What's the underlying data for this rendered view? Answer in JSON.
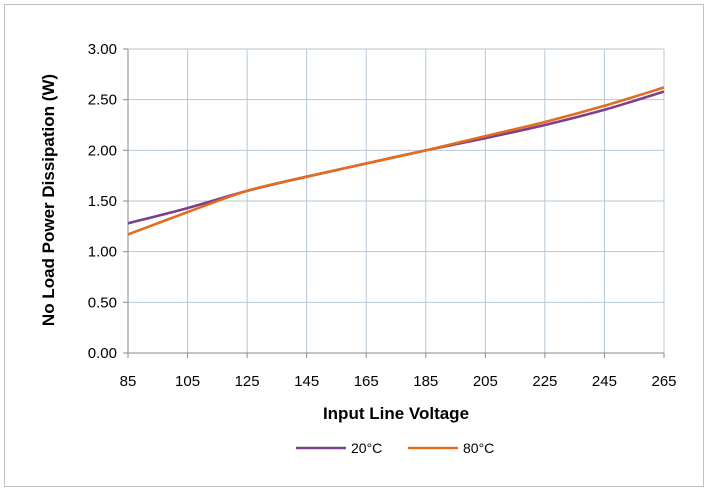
{
  "chart_data": {
    "type": "line",
    "xlabel": "Input Line Voltage",
    "ylabel": "No Load Power Dissipation (W)",
    "x": [
      85,
      105,
      125,
      145,
      165,
      185,
      205,
      225,
      245,
      265
    ],
    "x_ticks": [
      "85",
      "105",
      "125",
      "145",
      "165",
      "185",
      "205",
      "225",
      "245",
      "265"
    ],
    "y_ticks": [
      "0.00",
      "0.50",
      "1.00",
      "1.50",
      "2.00",
      "2.50",
      "3.00"
    ],
    "xlim": [
      85,
      265
    ],
    "ylim": [
      0,
      3
    ],
    "grid": true,
    "legend_position": "bottom",
    "series": [
      {
        "name": "20°C",
        "color": "#7B3F8C",
        "values": [
          1.28,
          1.43,
          1.6,
          1.74,
          1.87,
          2.0,
          2.12,
          2.25,
          2.4,
          2.58
        ]
      },
      {
        "name": "80°C",
        "color": "#E36C1F",
        "values": [
          1.17,
          1.39,
          1.6,
          1.74,
          1.87,
          2.0,
          2.14,
          2.28,
          2.44,
          2.62
        ]
      }
    ]
  }
}
